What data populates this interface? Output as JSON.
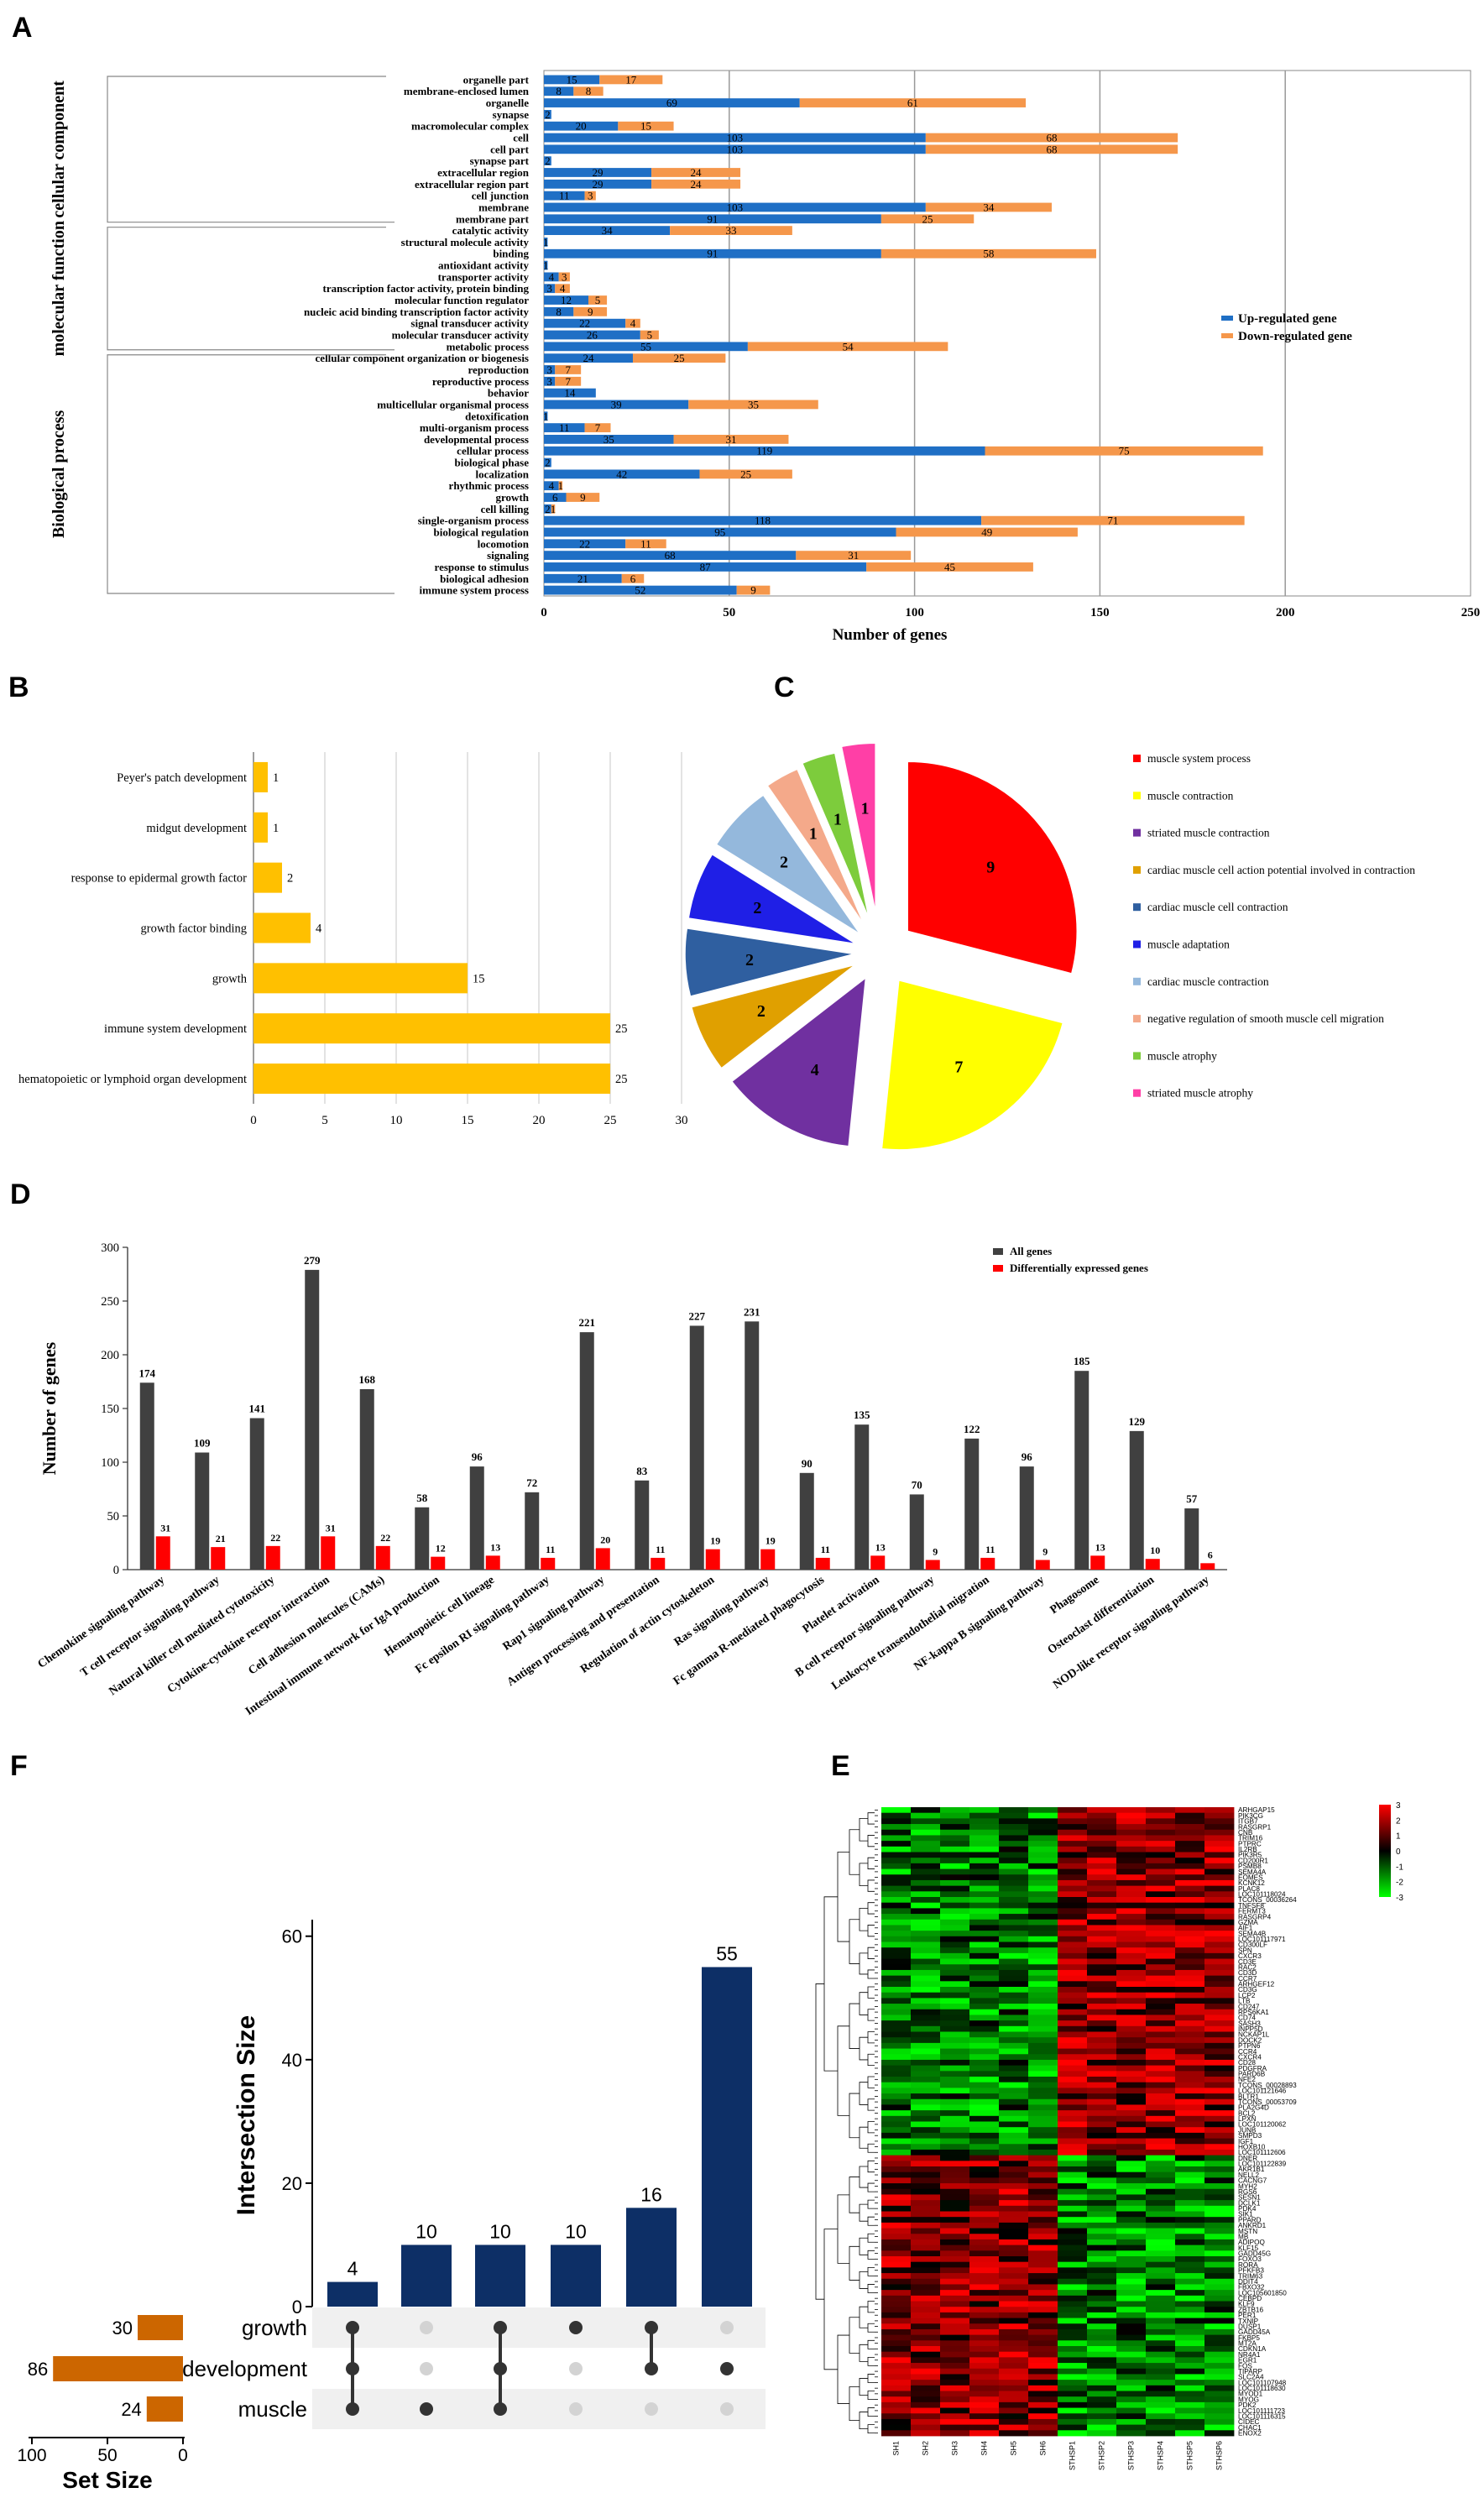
{
  "panel_labels": {
    "A": "A",
    "B": "B",
    "C": "C",
    "D": "D",
    "E": "E",
    "F": "F"
  },
  "chart_data": [
    {
      "id": "A",
      "type": "bar",
      "stacked": true,
      "orientation": "horizontal",
      "xlabel": "Number of genes",
      "xticks": [
        0,
        50,
        100,
        150,
        200,
        250
      ],
      "xlim": [
        0,
        250
      ],
      "legend": [
        "Up-regulated gene",
        "Down-regulated gene"
      ],
      "colors": {
        "up": "#1f6fc5",
        "down": "#f5974b"
      },
      "groups": [
        {
          "name": "cellular component",
          "from": 0,
          "to": 12
        },
        {
          "name": "molecular function",
          "from": 13,
          "to": 23
        },
        {
          "name": "Biological process",
          "from": 24,
          "to": 44
        }
      ],
      "categories": [
        "organelle part",
        "membrane-enclosed lumen",
        "organelle",
        "synapse",
        "macromolecular complex",
        "cell",
        "cell part",
        "synapse part",
        "extracellular region",
        "extracellular region part",
        "cell junction",
        "membrane",
        "membrane part",
        "catalytic activity",
        "structural molecule activity",
        "binding",
        "antioxidant activity",
        "transporter activity",
        "transcription factor activity, protein binding",
        "molecular function regulator",
        "nucleic acid binding transcription factor activity",
        "signal transducer activity",
        "molecular transducer activity",
        "metabolic process",
        "cellular component organization or biogenesis",
        "reproduction",
        "reproductive process",
        "behavior",
        "multicellular organismal process",
        "detoxification",
        "multi-organism process",
        "developmental process",
        "cellular process",
        "biological phase",
        "localization",
        "rhythmic process",
        "growth",
        "cell killing",
        "single-organism process",
        "biological regulation",
        "locomotion",
        "signaling",
        "response to stimulus",
        "biological adhesion",
        "immune system process"
      ],
      "up": [
        15,
        8,
        69,
        2,
        20,
        103,
        103,
        2,
        29,
        29,
        11,
        103,
        91,
        34,
        1,
        91,
        1,
        4,
        3,
        12,
        8,
        22,
        26,
        55,
        24,
        3,
        3,
        14,
        39,
        1,
        11,
        35,
        119,
        2,
        42,
        4,
        6,
        2,
        118,
        95,
        22,
        68,
        87,
        21,
        52
      ],
      "down": [
        17,
        8,
        61,
        0,
        15,
        68,
        68,
        0,
        24,
        24,
        3,
        34,
        25,
        33,
        0,
        58,
        0,
        3,
        4,
        5,
        9,
        4,
        5,
        54,
        25,
        7,
        7,
        0,
        35,
        0,
        7,
        31,
        75,
        0,
        25,
        1,
        9,
        1,
        71,
        49,
        11,
        31,
        45,
        6,
        9
      ],
      "up_labels": [
        "15",
        "8",
        "69",
        "2",
        "20",
        "103",
        "103",
        "2",
        "29",
        "29",
        "11",
        "103",
        "91",
        "34",
        "1",
        "91",
        "1",
        "4",
        "3",
        "12",
        "8",
        "22",
        "26",
        "55",
        "24",
        "3",
        "3",
        "14",
        "39",
        "1",
        "11",
        "35",
        "119",
        "2",
        "42",
        "4",
        "6",
        "2",
        "118",
        "95",
        "22",
        "68",
        "87",
        "21",
        "52"
      ],
      "down_labels": [
        "17",
        "8",
        "61",
        "",
        "15",
        "68",
        "68",
        "",
        "24",
        "24",
        "3",
        "34",
        "25",
        "33",
        "",
        "58",
        "",
        "3",
        "4",
        "5",
        "9",
        "4",
        "5",
        "54",
        "25",
        "7",
        "7",
        "",
        "35",
        "",
        "7",
        "31",
        "75",
        "",
        "25",
        "1",
        "9",
        "1",
        "71",
        "49",
        "11",
        "31",
        "45",
        "6",
        "9"
      ]
    },
    {
      "id": "B",
      "type": "bar",
      "orientation": "horizontal",
      "color": "#ffc000",
      "xticks": [
        0,
        5,
        10,
        15,
        20,
        25,
        30
      ],
      "xlim": [
        0,
        30
      ],
      "categories": [
        "Peyer's patch development",
        "midgut development",
        "response to epidermal growth factor",
        "growth factor binding",
        "growth",
        "immune system development",
        "hematopoietic or lymphoid organ development"
      ],
      "values": [
        1,
        1,
        2,
        4,
        15,
        25,
        25
      ],
      "value_labels": [
        "1",
        "1",
        "2",
        "4",
        "15",
        "25",
        "25"
      ]
    },
    {
      "id": "C",
      "type": "pie",
      "exploded": true,
      "labels": [
        "muscle system process",
        "muscle contraction",
        "striated muscle contraction",
        "cardiac muscle cell action potential involved in contraction",
        "cardiac muscle cell contraction",
        "muscle adaptation",
        "cardiac muscle contraction",
        "negative regulation of smooth muscle cell migration",
        "muscle atrophy",
        "striated muscle atrophy"
      ],
      "values": [
        9,
        7,
        4,
        2,
        2,
        2,
        2,
        1,
        1,
        1
      ],
      "value_labels": [
        "9",
        "7",
        "4",
        "2",
        "2",
        "2",
        "2",
        "1",
        "1",
        "1"
      ],
      "colors": [
        "#ff0000",
        "#ffff00",
        "#7030a0",
        "#e0a000",
        "#2f5fa0",
        "#1f1fe6",
        "#94b8dc",
        "#f4a98a",
        "#7dcc3c",
        "#ff3fa6"
      ]
    },
    {
      "id": "D",
      "type": "bar",
      "ylabel": "Number of genes",
      "yticks": [
        0,
        50,
        100,
        150,
        200,
        250,
        300
      ],
      "ylim": [
        0,
        300
      ],
      "legend": [
        "All genes",
        "Differentially expressed genes"
      ],
      "categories": [
        "Chemokine signaling pathway",
        "T cell receptor signaling pathway",
        "Natural killer cell mediated cytotoxicity",
        "Cytokine-cytokine receptor interaction",
        "Cell adhesion molecules (CAMs)",
        "Intestinal immune network for IgA production",
        "Hematopoietic cell lineage",
        "Fc epsilon RI signaling pathway",
        "Rap1 signaling pathway",
        "Antigen processing and presentation",
        "Regulation of actin cytoskeleton",
        "Ras signaling pathway",
        "Fc gamma R-mediated phagocytosis",
        "Platelet activation",
        "B cell receptor signaling pathway",
        "Leukocyte transendothelial migration",
        "NF-kappa B signaling pathway",
        "Phagosome",
        "Osteoclast differentiation",
        "NOD-like receptor signaling pathway"
      ],
      "series": [
        {
          "name": "All genes",
          "color": "#404040",
          "values": [
            174,
            109,
            141,
            279,
            168,
            58,
            96,
            72,
            221,
            83,
            227,
            231,
            90,
            135,
            70,
            122,
            96,
            185,
            129,
            57
          ],
          "labels": [
            "174",
            "109",
            "141",
            "279",
            "168",
            "58",
            "96",
            "72",
            "221",
            "83",
            "227",
            "231",
            "90",
            "135",
            "70",
            "122",
            "96",
            "185",
            "129",
            "57"
          ]
        },
        {
          "name": "Differentially expressed genes",
          "color": "#ff0000",
          "values": [
            31,
            21,
            22,
            31,
            22,
            12,
            13,
            11,
            20,
            11,
            19,
            19,
            11,
            13,
            9,
            11,
            9,
            13,
            10,
            6
          ],
          "labels": [
            "31",
            "21",
            "22",
            "31",
            "22",
            "12",
            "13",
            "11",
            "20",
            "11",
            "19",
            "19",
            "11",
            "13",
            "9",
            "11",
            "9",
            "13",
            "10",
            "6"
          ]
        }
      ]
    },
    {
      "id": "F",
      "type": "bar",
      "subtype": "upset",
      "ylabel": "Intersection Size",
      "yticks": [
        0,
        20,
        40,
        60
      ],
      "ylim": [
        0,
        62
      ],
      "color": "#0d2f66",
      "intersections": [
        4,
        10,
        10,
        10,
        16,
        55
      ],
      "intersection_labels": [
        "4",
        "10",
        "10",
        "10",
        "16",
        "55"
      ],
      "sets": [
        "growth",
        "development",
        "muscle"
      ],
      "set_sizes": [
        30,
        86,
        24
      ],
      "set_size_labels": [
        "30",
        "86",
        "24"
      ],
      "set_size_axis_label": "Set Size",
      "set_size_ticks": [
        100,
        50,
        0
      ],
      "set_color": "#cc6600",
      "membership": [
        [
          1,
          1,
          1
        ],
        [
          0,
          0,
          1
        ],
        [
          1,
          1,
          1
        ],
        [
          1,
          0,
          0
        ],
        [
          1,
          1,
          0
        ],
        [
          0,
          1,
          0
        ]
      ]
    },
    {
      "id": "E",
      "type": "heatmap",
      "columns": [
        "SH1",
        "SH2",
        "SH3",
        "SH4",
        "SH5",
        "SH6",
        "STHSP1",
        "STHSP2",
        "STHSP3",
        "STHSP4",
        "STHSP5",
        "STHSP6"
      ],
      "legend_ticks": [
        "3",
        "2",
        "1",
        "0",
        "-1",
        "-2",
        "-3"
      ],
      "genes": [
        "ARHGAP15",
        "PIK3CG",
        "ITGB7",
        "RASGRP1",
        "CNB",
        "TRIM16",
        "PTPRC",
        "IL2RB",
        "PIK3R5",
        "CD200R1",
        "PSMB8",
        "SEMA4A",
        "EOMES",
        "KCNK12",
        "PLAC8",
        "LOC101118024",
        "TCONS_00036264",
        "TNFSF8",
        "FERMT3",
        "RASGRP4",
        "GZMA",
        "AIF1",
        "SEMA4B",
        "LOC101117971",
        "CD300LF",
        "SPN",
        "CXCR3",
        "CD3E",
        "RAC2",
        "CD3D",
        "CCR7",
        "ARHGEF12",
        "CD3G",
        "LCP2",
        "LTB",
        "CD247",
        "RPS6KA1",
        "CD74",
        "SASH3",
        "INPP5D",
        "NCKAP1L",
        "DOCK2",
        "PTPN6",
        "CCR4",
        "CXCR4",
        "CD28",
        "PDGFRA",
        "PARD6B",
        "NFE2",
        "TCONS_00028893",
        "LOC101121646",
        "BLTR1",
        "TCONS_00053709",
        "PLA2G4D",
        "BCL2",
        "LPXN",
        "LOC101120062",
        "JUNB",
        "SMPD3",
        "IGF1",
        "HOXB10",
        "LOC101112606",
        "DNER",
        "LOC101122839",
        "AKR1B1",
        "NELL2",
        "CACNG7",
        "MYH2",
        "RGS6",
        "SESN1",
        "DCLK1",
        "PDK4",
        "SIK1",
        "PPARD",
        "ANKRD1",
        "MSTN",
        "MB",
        "ADIPOQ",
        "KLF15",
        "GADD45G",
        "FOXO3",
        "RORA",
        "PFKFB3",
        "TRIM63",
        "DDIT4",
        "FBXO32",
        "LOC105601850",
        "CEBPD",
        "KLF9",
        "ZBTB16",
        "PER1",
        "TXNIP",
        "DUSP1",
        "GADD45A",
        "FKBP5",
        "MT2A",
        "CDKN1A",
        "NR4A1",
        "EGR1",
        "FOS",
        "TIPARP",
        "SLC2A4",
        "LOC101107948",
        "LOC101118630",
        "MYOD1",
        "MYOG",
        "PDK2",
        "LOC101111723",
        "LOC101116315",
        "CIDEC",
        "CHAC1",
        "ENOX2"
      ]
    }
  ]
}
